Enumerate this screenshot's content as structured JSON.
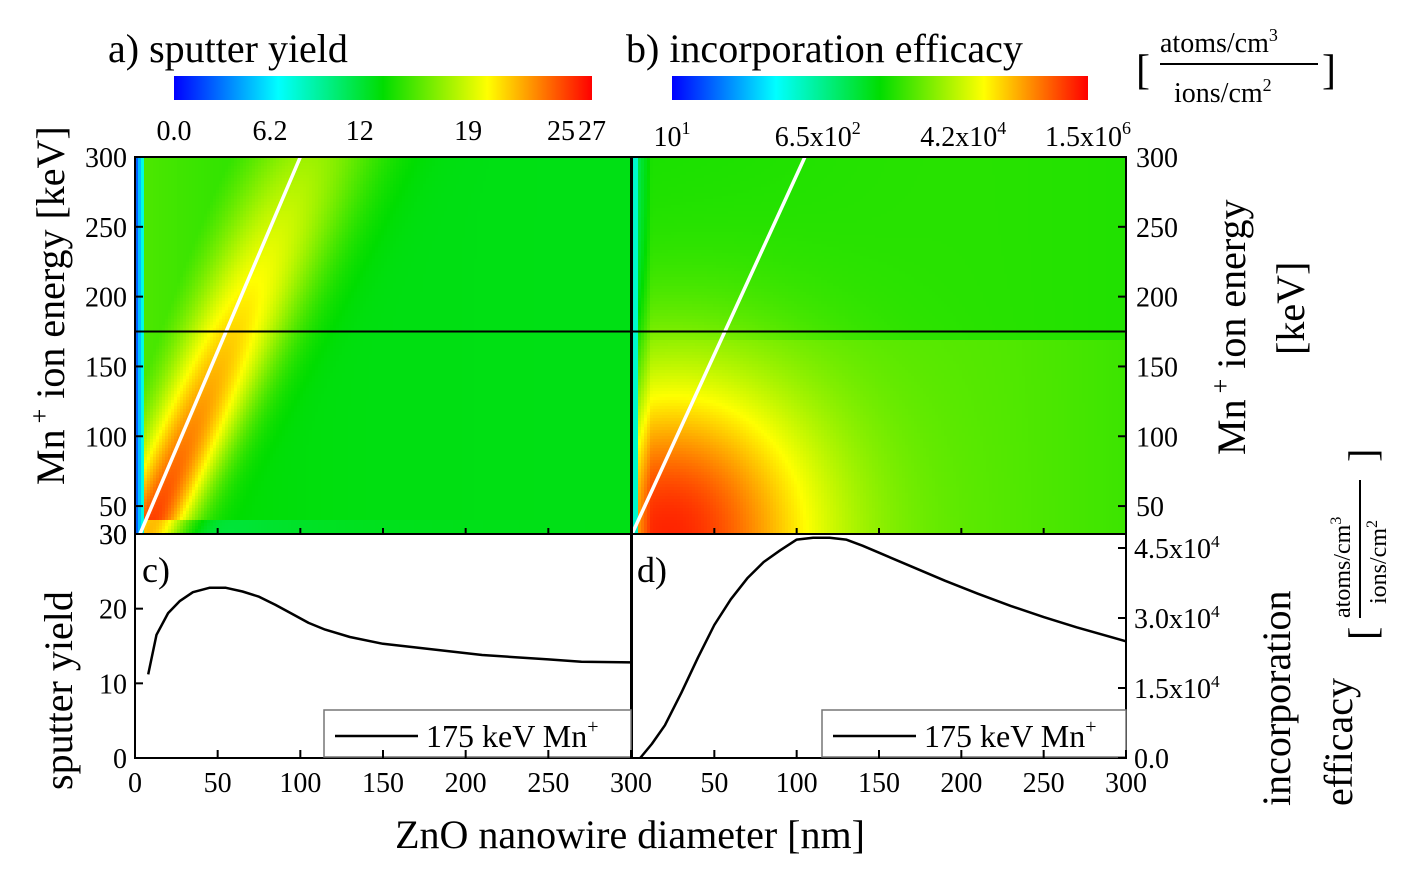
{
  "figure": {
    "shared_xlabel": "ZnO nanowire diameter [nm]",
    "unit_bracket_numerator": "atoms/cm",
    "unit_bracket_denominator": "ions/cm",
    "unit_numerator_exponent": "3",
    "unit_denominator_exponent": "2",
    "colorscale": [
      "#0000ff",
      "#00ffff",
      "#00dd00",
      "#ffff00",
      "#ff0000"
    ]
  },
  "chart_data": [
    {
      "panel": "a",
      "type": "heatmap",
      "title": "a) sputter yield",
      "ylabel_parts": [
        "Mn",
        "+",
        " ion energy [keV]"
      ],
      "xlim": [
        0,
        300
      ],
      "ylim": [
        30,
        300
      ],
      "yticks": [
        30,
        50,
        100,
        150,
        200,
        250,
        300
      ],
      "colorbar": {
        "tick_labels": [
          "0.0",
          "6.2",
          "12",
          "19",
          "25",
          "27"
        ],
        "tick_values": [
          0,
          6.2,
          12,
          19,
          25,
          27
        ],
        "range": [
          0,
          27
        ],
        "scale": "linear"
      },
      "overlay_lines": [
        {
          "kind": "white",
          "x": [
            3,
            100
          ],
          "y": [
            30,
            300
          ]
        },
        {
          "kind": "horizontal",
          "color": "#000000",
          "y": 175
        }
      ]
    },
    {
      "panel": "b",
      "type": "heatmap",
      "title": "b) incorporation efficacy",
      "ylabel_parts": [
        "Mn",
        "+",
        " ion energy",
        "[keV]"
      ],
      "xlim": [
        0,
        300
      ],
      "ylim": [
        30,
        300
      ],
      "yticks": [
        50,
        100,
        150,
        200,
        250,
        300
      ],
      "colorbar": {
        "tick_labels": [
          {
            "base": "10",
            "exp": "1"
          },
          {
            "base": "6.5x10",
            "exp": "2"
          },
          {
            "base": "4.2x10",
            "exp": "4"
          },
          {
            "base": "1.5x10",
            "exp": "6"
          }
        ],
        "tick_values": [
          10,
          650,
          42000,
          1500000
        ],
        "range": [
          10,
          1500000
        ],
        "scale": "log"
      },
      "overlay_lines": [
        {
          "kind": "white",
          "x": [
            0,
            105
          ],
          "y": [
            30,
            300
          ]
        },
        {
          "kind": "horizontal",
          "color": "#000000",
          "y": 175
        }
      ]
    },
    {
      "panel": "c",
      "type": "line",
      "label": "c)",
      "ylabel": "sputter yield",
      "xlim": [
        0,
        300
      ],
      "ylim": [
        0,
        30
      ],
      "xticks": [
        0,
        50,
        100,
        150,
        200,
        250,
        300
      ],
      "yticks": [
        0,
        10,
        20,
        30
      ],
      "legend": "175 keV Mn",
      "legend_sup": "+",
      "legend_position": "bottom-right",
      "series": [
        {
          "x": [
            8,
            13,
            20,
            27,
            35,
            45,
            55,
            65,
            75,
            85,
            95,
            105,
            115,
            130,
            150,
            170,
            190,
            210,
            230,
            250,
            270,
            300
          ],
          "y": [
            11.2,
            16.5,
            19.4,
            21.0,
            22.2,
            22.8,
            22.8,
            22.3,
            21.6,
            20.5,
            19.3,
            18.1,
            17.2,
            16.2,
            15.3,
            14.8,
            14.3,
            13.8,
            13.5,
            13.2,
            12.9,
            12.8
          ]
        }
      ]
    },
    {
      "panel": "d",
      "type": "line",
      "label": "d)",
      "ylabel_lines": [
        "incorporation",
        "efficacy"
      ],
      "xlim": [
        0,
        300
      ],
      "ylim": [
        0,
        48000
      ],
      "xticks": [
        50,
        100,
        150,
        200,
        250,
        300
      ],
      "yticks": [
        0,
        15000,
        30000,
        45000
      ],
      "ytick_labels": [
        {
          "base": "0.0",
          "exp": ""
        },
        {
          "base": "1.5x10",
          "exp": "4"
        },
        {
          "base": "3.0x10",
          "exp": "4"
        },
        {
          "base": "4.5x10",
          "exp": "4"
        }
      ],
      "legend": "175 keV Mn",
      "legend_sup": "+",
      "legend_position": "bottom-right",
      "series": [
        {
          "x": [
            5,
            12,
            20,
            30,
            40,
            50,
            60,
            70,
            80,
            90,
            100,
            110,
            120,
            130,
            140,
            150,
            170,
            190,
            210,
            230,
            250,
            270,
            300
          ],
          "y": [
            0,
            3000,
            7000,
            14000,
            21500,
            28500,
            34000,
            38500,
            42000,
            44500,
            46800,
            47200,
            47200,
            46800,
            45500,
            44000,
            41000,
            38000,
            35200,
            32600,
            30200,
            28000,
            25000
          ]
        }
      ]
    }
  ]
}
